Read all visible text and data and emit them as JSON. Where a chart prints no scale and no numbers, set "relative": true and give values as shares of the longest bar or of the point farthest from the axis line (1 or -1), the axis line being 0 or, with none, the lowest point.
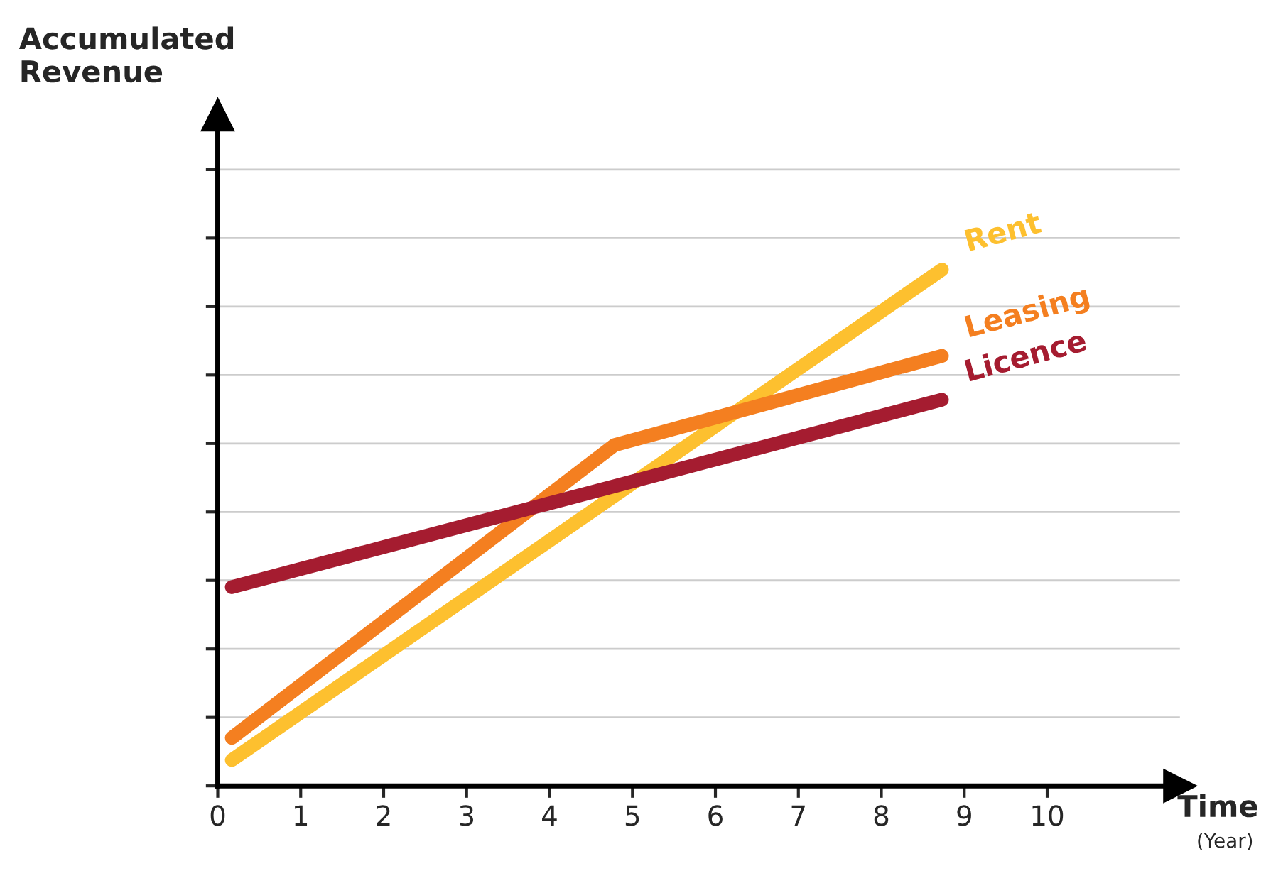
{
  "chart_data": {
    "type": "line",
    "relative": true,
    "xlabel": "Time\n(Year)",
    "annotations": [
      "Accumulated\nRevenue"
    ],
    "xlim": [
      0,
      11.6
    ],
    "xticks": [
      0,
      1,
      2,
      3,
      4,
      5,
      6,
      7,
      8,
      9,
      10
    ],
    "grid": "y",
    "marker": "none",
    "line_style": "solid",
    "series": [
      {
        "name": "Rent",
        "color": "#fdc02f",
        "x": [
          0.17,
          8.73
        ],
        "values": [
          0.05,
          1.0
        ]
      },
      {
        "name": "Leasing",
        "color": "#f47f20",
        "x": [
          0.17,
          4.78,
          8.73
        ],
        "values": [
          0.093,
          0.66,
          0.833
        ]
      },
      {
        "name": "Licence",
        "color": "#a51c30",
        "x": [
          0.17,
          8.73
        ],
        "values": [
          0.385,
          0.748
        ]
      }
    ]
  }
}
